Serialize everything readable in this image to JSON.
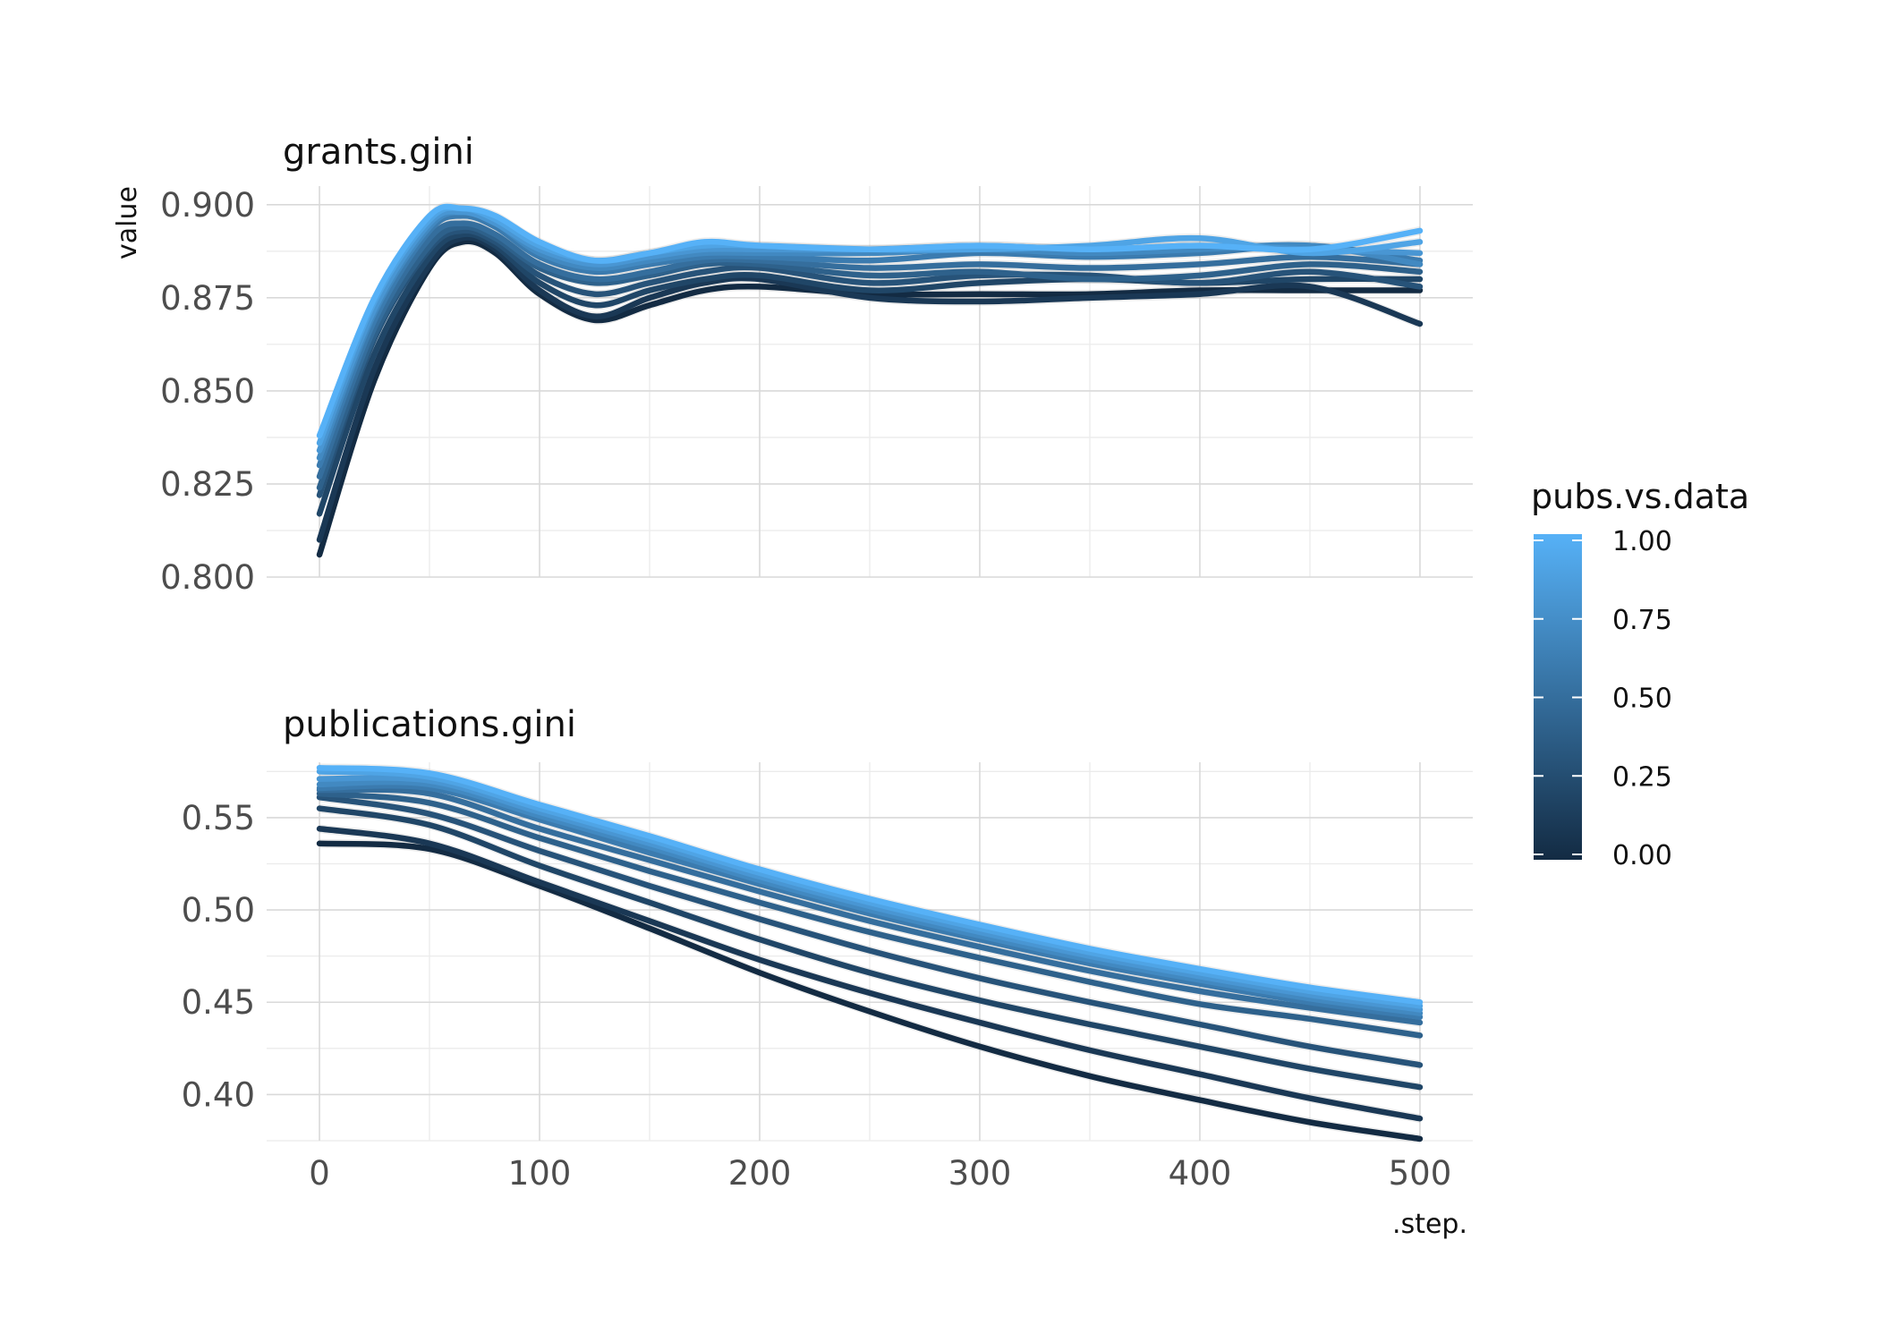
{
  "chart_data": {
    "type": "line",
    "x_title": ".step.",
    "y_title": "value",
    "x_range": [
      -24,
      524
    ],
    "x_ticks": [
      0,
      100,
      200,
      300,
      400,
      500
    ],
    "x_tick_labels": [
      "0",
      "100",
      "200",
      "300",
      "400",
      "500"
    ],
    "color_scale": {
      "title": "pubs.vs.data",
      "low_color": "#132B43",
      "high_color": "#56B1F7",
      "range": [
        0,
        1
      ],
      "breaks": [
        1.0,
        0.75,
        0.5,
        0.25,
        0.0
      ],
      "break_labels": [
        "1.00",
        "0.75",
        "0.50",
        "0.25",
        "0.00"
      ]
    },
    "panels": [
      {
        "title": "grants.gini",
        "y_range": [
          0.8,
          0.905
        ],
        "y_ticks": [
          0.8,
          0.825,
          0.85,
          0.875,
          0.9
        ],
        "y_tick_labels": [
          "0.800",
          "0.825",
          "0.850",
          "0.875",
          "0.900"
        ],
        "series": [
          {
            "pubs_vs_data": 0.0,
            "x": [
              0,
              25,
              50,
              65,
              80,
              100,
              125,
              150,
              175,
              200,
              250,
              300,
              350,
              400,
              450,
              500
            ],
            "y": [
              0.806,
              0.853,
              0.883,
              0.89,
              0.887,
              0.876,
              0.869,
              0.873,
              0.877,
              0.878,
              0.876,
              0.876,
              0.876,
              0.877,
              0.877,
              0.877
            ]
          },
          {
            "pubs_vs_data": 0.1,
            "x": [
              0,
              25,
              50,
              65,
              80,
              100,
              125,
              150,
              175,
              200,
              250,
              300,
              350,
              400,
              450,
              500
            ],
            "y": [
              0.81,
              0.856,
              0.884,
              0.891,
              0.888,
              0.877,
              0.87,
              0.875,
              0.879,
              0.88,
              0.875,
              0.874,
              0.875,
              0.876,
              0.878,
              0.868
            ]
          },
          {
            "pubs_vs_data": 0.2,
            "x": [
              0,
              25,
              50,
              65,
              80,
              100,
              125,
              150,
              175,
              200,
              250,
              300,
              350,
              400,
              450,
              500
            ],
            "y": [
              0.817,
              0.86,
              0.886,
              0.892,
              0.889,
              0.879,
              0.873,
              0.877,
              0.88,
              0.881,
              0.877,
              0.879,
              0.88,
              0.879,
              0.88,
              0.88
            ]
          },
          {
            "pubs_vs_data": 0.3,
            "x": [
              0,
              25,
              50,
              65,
              80,
              100,
              125,
              150,
              175,
              200,
              250,
              300,
              350,
              400,
              450,
              500
            ],
            "y": [
              0.822,
              0.864,
              0.888,
              0.893,
              0.89,
              0.881,
              0.876,
              0.879,
              0.882,
              0.883,
              0.879,
              0.881,
              0.881,
              0.879,
              0.882,
              0.878
            ]
          },
          {
            "pubs_vs_data": 0.4,
            "x": [
              0,
              25,
              50,
              65,
              80,
              100,
              125,
              150,
              175,
              200,
              250,
              300,
              350,
              400,
              450,
              500
            ],
            "y": [
              0.824,
              0.865,
              0.889,
              0.894,
              0.891,
              0.883,
              0.879,
              0.881,
              0.884,
              0.884,
              0.881,
              0.882,
              0.88,
              0.881,
              0.884,
              0.882
            ]
          },
          {
            "pubs_vs_data": 0.5,
            "x": [
              0,
              25,
              50,
              65,
              80,
              100,
              125,
              150,
              175,
              200,
              250,
              300,
              350,
              400,
              450,
              500
            ],
            "y": [
              0.827,
              0.867,
              0.891,
              0.895,
              0.892,
              0.884,
              0.88,
              0.882,
              0.885,
              0.885,
              0.883,
              0.884,
              0.883,
              0.884,
              0.886,
              0.884
            ]
          },
          {
            "pubs_vs_data": 0.6,
            "x": [
              0,
              25,
              50,
              65,
              80,
              100,
              125,
              150,
              175,
              200,
              250,
              300,
              350,
              400,
              450,
              500
            ],
            "y": [
              0.83,
              0.869,
              0.893,
              0.897,
              0.894,
              0.886,
              0.882,
              0.884,
              0.886,
              0.886,
              0.885,
              0.887,
              0.886,
              0.887,
              0.889,
              0.885
            ]
          },
          {
            "pubs_vs_data": 0.7,
            "x": [
              0,
              25,
              50,
              65,
              80,
              100,
              125,
              150,
              175,
              200,
              250,
              300,
              350,
              400,
              450,
              500
            ],
            "y": [
              0.832,
              0.871,
              0.894,
              0.898,
              0.895,
              0.887,
              0.883,
              0.885,
              0.887,
              0.887,
              0.887,
              0.888,
              0.887,
              0.888,
              0.889,
              0.884
            ]
          },
          {
            "pubs_vs_data": 0.8,
            "x": [
              0,
              25,
              50,
              65,
              80,
              100,
              125,
              150,
              175,
              200,
              250,
              300,
              350,
              400,
              450,
              500
            ],
            "y": [
              0.834,
              0.872,
              0.895,
              0.898,
              0.895,
              0.888,
              0.884,
              0.886,
              0.888,
              0.888,
              0.888,
              0.889,
              0.888,
              0.889,
              0.888,
              0.887
            ]
          },
          {
            "pubs_vs_data": 0.9,
            "x": [
              0,
              25,
              50,
              65,
              80,
              100,
              125,
              150,
              175,
              200,
              250,
              300,
              350,
              400,
              450,
              500
            ],
            "y": [
              0.836,
              0.874,
              0.896,
              0.899,
              0.896,
              0.889,
              0.885,
              0.887,
              0.889,
              0.889,
              0.888,
              0.888,
              0.889,
              0.891,
              0.887,
              0.89
            ]
          },
          {
            "pubs_vs_data": 1.0,
            "x": [
              0,
              25,
              50,
              65,
              80,
              100,
              125,
              150,
              175,
              200,
              250,
              300,
              350,
              400,
              450,
              500
            ],
            "y": [
              0.838,
              0.875,
              0.897,
              0.899,
              0.897,
              0.89,
              0.885,
              0.887,
              0.89,
              0.889,
              0.888,
              0.889,
              0.888,
              0.889,
              0.888,
              0.893
            ]
          }
        ]
      },
      {
        "title": "publications.gini",
        "y_range": [
          0.375,
          0.58
        ],
        "y_ticks": [
          0.4,
          0.45,
          0.5,
          0.55
        ],
        "y_tick_labels": [
          "0.40",
          "0.45",
          "0.50",
          "0.55"
        ],
        "series": [
          {
            "pubs_vs_data": 0.0,
            "x": [
              0,
              50,
              100,
              150,
              200,
              250,
              300,
              350,
              400,
              450,
              500
            ],
            "y": [
              0.536,
              0.533,
              0.513,
              0.49,
              0.466,
              0.445,
              0.426,
              0.41,
              0.397,
              0.385,
              0.376
            ]
          },
          {
            "pubs_vs_data": 0.1,
            "x": [
              0,
              50,
              100,
              150,
              200,
              250,
              300,
              350,
              400,
              450,
              500
            ],
            "y": [
              0.544,
              0.536,
              0.515,
              0.494,
              0.473,
              0.455,
              0.439,
              0.424,
              0.411,
              0.398,
              0.387
            ]
          },
          {
            "pubs_vs_data": 0.2,
            "x": [
              0,
              50,
              100,
              150,
              200,
              250,
              300,
              350,
              400,
              450,
              500
            ],
            "y": [
              0.555,
              0.546,
              0.524,
              0.504,
              0.484,
              0.466,
              0.451,
              0.438,
              0.426,
              0.414,
              0.404
            ]
          },
          {
            "pubs_vs_data": 0.3,
            "x": [
              0,
              50,
              100,
              150,
              200,
              250,
              300,
              350,
              400,
              450,
              500
            ],
            "y": [
              0.561,
              0.552,
              0.532,
              0.513,
              0.495,
              0.478,
              0.463,
              0.45,
              0.438,
              0.426,
              0.416
            ]
          },
          {
            "pubs_vs_data": 0.4,
            "x": [
              0,
              50,
              100,
              150,
              200,
              250,
              300,
              350,
              400,
              450,
              500
            ],
            "y": [
              0.563,
              0.558,
              0.539,
              0.521,
              0.504,
              0.488,
              0.474,
              0.461,
              0.449,
              0.441,
              0.432
            ]
          },
          {
            "pubs_vs_data": 0.5,
            "x": [
              0,
              50,
              100,
              150,
              200,
              250,
              300,
              350,
              400,
              450,
              500
            ],
            "y": [
              0.565,
              0.563,
              0.544,
              0.527,
              0.51,
              0.494,
              0.48,
              0.467,
              0.456,
              0.447,
              0.439
            ]
          },
          {
            "pubs_vs_data": 0.6,
            "x": [
              0,
              50,
              100,
              150,
              200,
              250,
              300,
              350,
              400,
              450,
              500
            ],
            "y": [
              0.566,
              0.566,
              0.549,
              0.531,
              0.514,
              0.498,
              0.484,
              0.471,
              0.46,
              0.45,
              0.442
            ]
          },
          {
            "pubs_vs_data": 0.7,
            "x": [
              0,
              50,
              100,
              150,
              200,
              250,
              300,
              350,
              400,
              450,
              500
            ],
            "y": [
              0.568,
              0.568,
              0.551,
              0.534,
              0.516,
              0.5,
              0.486,
              0.473,
              0.462,
              0.452,
              0.444
            ]
          },
          {
            "pubs_vs_data": 0.8,
            "x": [
              0,
              50,
              100,
              150,
              200,
              250,
              300,
              350,
              400,
              450,
              500
            ],
            "y": [
              0.571,
              0.57,
              0.553,
              0.536,
              0.518,
              0.502,
              0.488,
              0.475,
              0.464,
              0.454,
              0.446
            ]
          },
          {
            "pubs_vs_data": 0.9,
            "x": [
              0,
              50,
              100,
              150,
              200,
              250,
              300,
              350,
              400,
              450,
              500
            ],
            "y": [
              0.575,
              0.572,
              0.555,
              0.538,
              0.52,
              0.504,
              0.49,
              0.477,
              0.466,
              0.456,
              0.448
            ]
          },
          {
            "pubs_vs_data": 1.0,
            "x": [
              0,
              50,
              100,
              150,
              200,
              250,
              300,
              350,
              400,
              450,
              500
            ],
            "y": [
              0.577,
              0.574,
              0.557,
              0.54,
              0.522,
              0.506,
              0.492,
              0.479,
              0.468,
              0.458,
              0.45
            ]
          }
        ]
      }
    ]
  }
}
